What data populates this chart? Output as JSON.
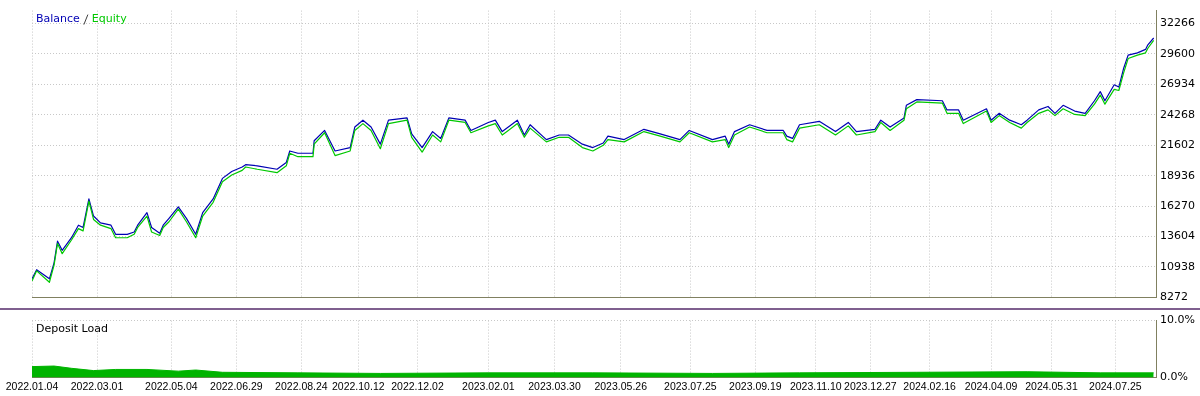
{
  "chart_data": [
    {
      "type": "line",
      "legend": "top left",
      "grid": true,
      "tick_labels": "y",
      "x": [
        "2022-01-04",
        "2022-01-08",
        "2022-01-19",
        "2022-01-23",
        "2022-01-26",
        "2022-01-30",
        "2022-02-07",
        "2022-02-13",
        "2022-02-17",
        "2022-02-22",
        "2022-02-26",
        "2022-03-04",
        "2022-03-13",
        "2022-03-17",
        "2022-03-27",
        "2022-04-02",
        "2022-04-05",
        "2022-04-13",
        "2022-04-17",
        "2022-04-24",
        "2022-04-27",
        "2022-05-02",
        "2022-05-10",
        "2022-05-17",
        "2022-05-25",
        "2022-05-31",
        "2022-06-09",
        "2022-06-17",
        "2022-06-25",
        "2022-07-04",
        "2022-07-07",
        "2022-07-17",
        "2022-08-03",
        "2022-08-11",
        "2022-08-14",
        "2022-08-21",
        "2022-09-03",
        "2022-09-04",
        "2022-09-13",
        "2022-09-22",
        "2022-10-05",
        "2022-10-09",
        "2022-10-16",
        "2022-10-23",
        "2022-10-31",
        "2022-11-07",
        "2022-11-23",
        "2022-11-27",
        "2022-12-06",
        "2022-12-15",
        "2022-12-22",
        "2022-12-29",
        "2023-01-12",
        "2023-01-17",
        "2023-02-01",
        "2023-02-07",
        "2023-02-13",
        "2023-02-26",
        "2023-03-04",
        "2023-03-09",
        "2023-03-23",
        "2023-04-03",
        "2023-04-11",
        "2023-04-23",
        "2023-05-02",
        "2023-05-11",
        "2023-05-15",
        "2023-05-29",
        "2023-06-15",
        "2023-06-29",
        "2023-07-16",
        "2023-07-24",
        "2023-08-13",
        "2023-08-24",
        "2023-08-27",
        "2023-09-01",
        "2023-09-14",
        "2023-09-29",
        "2023-10-13",
        "2023-10-16",
        "2023-10-21",
        "2023-10-27",
        "2023-11-13",
        "2023-11-27",
        "2023-12-08",
        "2023-12-15",
        "2023-12-31",
        "2024-01-05",
        "2024-01-13",
        "2024-01-25",
        "2024-01-27",
        "2024-02-05",
        "2024-02-27",
        "2024-03-02",
        "2024-03-12",
        "2024-03-16",
        "2024-04-05",
        "2024-04-09",
        "2024-04-16",
        "2024-04-25",
        "2024-05-05",
        "2024-05-10",
        "2024-05-20",
        "2024-05-28",
        "2024-06-03",
        "2024-06-10",
        "2024-06-20",
        "2024-06-29",
        "2024-07-07",
        "2024-07-12",
        "2024-07-16",
        "2024-07-24",
        "2024-07-28",
        "2024-08-01",
        "2024-08-05",
        "2024-08-13",
        "2024-08-20",
        "2024-08-22",
        "2024-08-27"
      ],
      "xlim": [
        "2022-01-04",
        "2024-08-29"
      ],
      "xticks": [
        {
          "value": "2022-01-04",
          "label": null
        },
        {
          "value": "2022-03-01",
          "label": null
        },
        {
          "value": "2022-05-04",
          "label": null
        },
        {
          "value": "2022-06-29",
          "label": null
        },
        {
          "value": "2022-08-24",
          "label": null
        },
        {
          "value": "2022-10-12",
          "label": null
        },
        {
          "value": "2022-12-02",
          "label": null
        },
        {
          "value": "2023-02-01",
          "label": null
        },
        {
          "value": "2023-03-30",
          "label": null
        },
        {
          "value": "2023-05-26",
          "label": null
        },
        {
          "value": "2023-07-25",
          "label": null
        },
        {
          "value": "2023-09-19",
          "label": null
        },
        {
          "value": "2023-11-10",
          "label": null
        },
        {
          "value": "2023-12-27",
          "label": null
        },
        {
          "value": "2024-02-16",
          "label": null
        },
        {
          "value": "2024-04-09",
          "label": null
        },
        {
          "value": "2024-05-31",
          "label": null
        },
        {
          "value": "2024-07-25",
          "label": null
        }
      ],
      "ylim": [
        8272,
        33400
      ],
      "yticks": [
        8272,
        10938,
        13604,
        16270,
        18936,
        21602,
        24268,
        26934,
        29600,
        32266
      ],
      "series": [
        {
          "name": "Equity",
          "color": "#00c800",
          "values": [
            9700,
            10600,
            9600,
            11100,
            13000,
            12100,
            13300,
            14300,
            14100,
            16700,
            15100,
            14600,
            14300,
            13500,
            13500,
            13800,
            14400,
            15400,
            14000,
            13700,
            14400,
            14900,
            16000,
            14900,
            13500,
            15400,
            16600,
            18400,
            19000,
            19400,
            19700,
            19500,
            19200,
            19800,
            20900,
            20600,
            20600,
            21700,
            22700,
            20700,
            21100,
            22900,
            23500,
            22900,
            21300,
            23500,
            23800,
            22300,
            21000,
            22500,
            21900,
            23800,
            23600,
            22700,
            23300,
            23500,
            22500,
            23500,
            22300,
            23100,
            21900,
            22300,
            22300,
            21400,
            21100,
            21600,
            22100,
            21900,
            22800,
            22400,
            21900,
            22700,
            21900,
            22100,
            21400,
            22500,
            23200,
            22700,
            22700,
            22100,
            21900,
            23100,
            23400,
            22500,
            23300,
            22500,
            22800,
            23600,
            22900,
            23800,
            24800,
            25400,
            25300,
            24400,
            24400,
            23500,
            24600,
            23600,
            24200,
            23600,
            23100,
            23600,
            24400,
            24700,
            24200,
            24800,
            24300,
            24200,
            25200,
            26000,
            25200,
            26500,
            26400,
            27900,
            29200,
            29500,
            29700,
            30100,
            30800
          ]
        },
        {
          "name": "Balance",
          "color": "#0000b4",
          "values": [
            9900,
            10700,
            9900,
            11300,
            13200,
            12400,
            13500,
            14600,
            14400,
            16900,
            15400,
            14800,
            14600,
            13800,
            13800,
            14000,
            14600,
            15700,
            14400,
            13900,
            14600,
            15200,
            16200,
            15200,
            13800,
            15700,
            16900,
            18700,
            19300,
            19700,
            19900,
            19800,
            19500,
            20100,
            21100,
            20900,
            20900,
            22000,
            22900,
            21100,
            21400,
            23200,
            23800,
            23200,
            21700,
            23800,
            24000,
            22600,
            21400,
            22800,
            22200,
            24000,
            23800,
            22900,
            23600,
            23800,
            22800,
            23800,
            22500,
            23400,
            22100,
            22500,
            22500,
            21700,
            21400,
            21800,
            22400,
            22100,
            23000,
            22600,
            22100,
            22900,
            22100,
            22400,
            21700,
            22800,
            23400,
            22900,
            22900,
            22400,
            22200,
            23400,
            23700,
            22800,
            23600,
            22800,
            23000,
            23800,
            23200,
            24000,
            25100,
            25600,
            25500,
            24700,
            24700,
            23800,
            24800,
            23800,
            24400,
            23800,
            23400,
            23800,
            24700,
            25000,
            24400,
            25100,
            24600,
            24400,
            25500,
            26300,
            25500,
            26900,
            26700,
            28300,
            29500,
            29700,
            30000,
            30400,
            31000
          ]
        }
      ]
    },
    {
      "type": "area",
      "title": "Deposit Load",
      "grid": true,
      "x": [
        "2022-01-04",
        "2022-01-23",
        "2022-02-07",
        "2022-02-26",
        "2022-03-17",
        "2022-04-13",
        "2022-05-10",
        "2022-05-25",
        "2022-06-17",
        "2022-08-21",
        "2022-10-31",
        "2023-02-01",
        "2023-05-02",
        "2023-08-13",
        "2023-10-27",
        "2024-02-05",
        "2024-05-10",
        "2024-07-12",
        "2024-08-27"
      ],
      "xlim": [
        "2022-01-04",
        "2024-08-29"
      ],
      "xticks": [
        {
          "value": "2022-01-04",
          "label": "2022.01.04"
        },
        {
          "value": "2022-03-01",
          "label": "2022.03.01"
        },
        {
          "value": "2022-05-04",
          "label": "2022.05.04"
        },
        {
          "value": "2022-06-29",
          "label": "2022.06.29"
        },
        {
          "value": "2022-08-24",
          "label": "2022.08.24"
        },
        {
          "value": "2022-10-12",
          "label": "2022.10.12"
        },
        {
          "value": "2022-12-02",
          "label": "2022.12.02"
        },
        {
          "value": "2023-02-01",
          "label": "2023.02.01"
        },
        {
          "value": "2023-03-30",
          "label": "2023.03.30"
        },
        {
          "value": "2023-05-26",
          "label": "2023.05.26"
        },
        {
          "value": "2023-07-25",
          "label": "2023.07.25"
        },
        {
          "value": "2023-09-19",
          "label": "2023.09.19"
        },
        {
          "value": "2023-11-10",
          "label": "2023.11.10"
        },
        {
          "value": "2023-12-27",
          "label": "2023.12.27"
        },
        {
          "value": "2024-02-16",
          "label": "2024.02.16"
        },
        {
          "value": "2024-04-09",
          "label": "2024.04.09"
        },
        {
          "value": "2024-05-31",
          "label": "2024.05.31"
        },
        {
          "value": "2024-07-25",
          "label": "2024.07.25"
        }
      ],
      "ylim": [
        0,
        10
      ],
      "yticks": [
        {
          "value": 0,
          "label": "0.0%"
        },
        {
          "value": 10,
          "label": "10.0%"
        }
      ],
      "series": [
        {
          "color": "#00b400",
          "values": [
            1.9,
            2.0,
            1.6,
            1.2,
            1.4,
            1.4,
            1.1,
            1.3,
            0.9,
            0.8,
            0.7,
            0.8,
            0.8,
            0.7,
            0.8,
            0.9,
            1.0,
            0.8,
            0.8
          ]
        }
      ]
    }
  ]
}
